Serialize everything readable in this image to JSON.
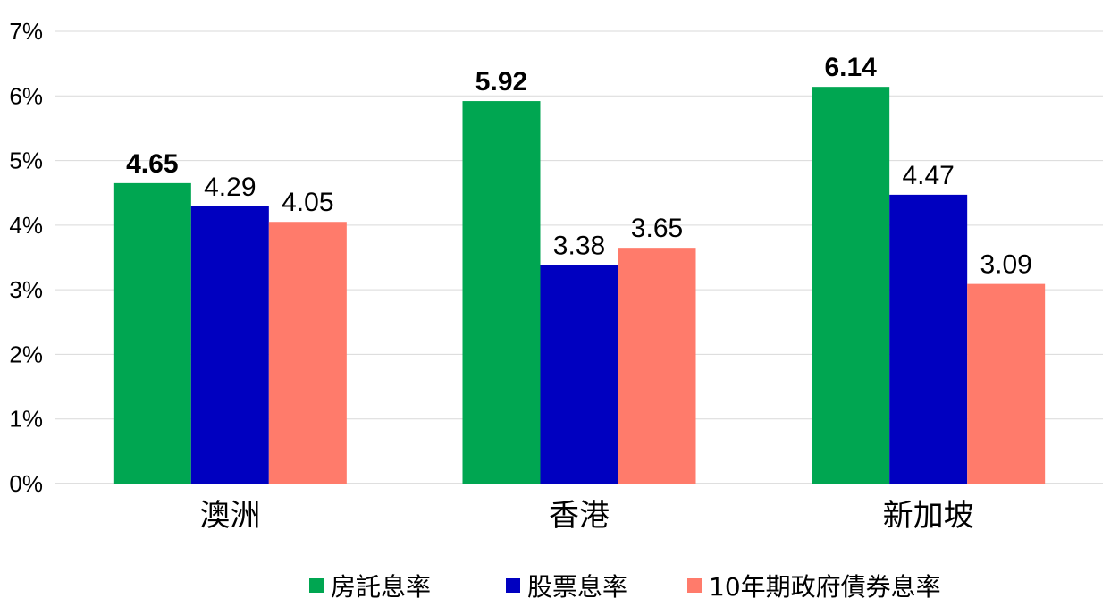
{
  "chart_data": {
    "type": "bar",
    "categories": [
      "澳洲",
      "香港",
      "新加坡"
    ],
    "series": [
      {
        "name": "房託息率",
        "values": [
          4.65,
          5.92,
          6.14
        ],
        "color": "#00A651",
        "label_bold": true
      },
      {
        "name": "股票息率",
        "values": [
          4.29,
          3.38,
          4.47
        ],
        "color": "#0000C0",
        "label_bold": false
      },
      {
        "name": "10年期政府債券息率",
        "values": [
          4.05,
          3.65,
          3.09
        ],
        "color": "#FF7B6B",
        "label_bold": false
      }
    ],
    "yticks": [
      "0%",
      "1%",
      "2%",
      "3%",
      "4%",
      "5%",
      "6%",
      "7%"
    ],
    "ylim": [
      0,
      7
    ],
    "grid": true,
    "legend_position": "bottom"
  }
}
